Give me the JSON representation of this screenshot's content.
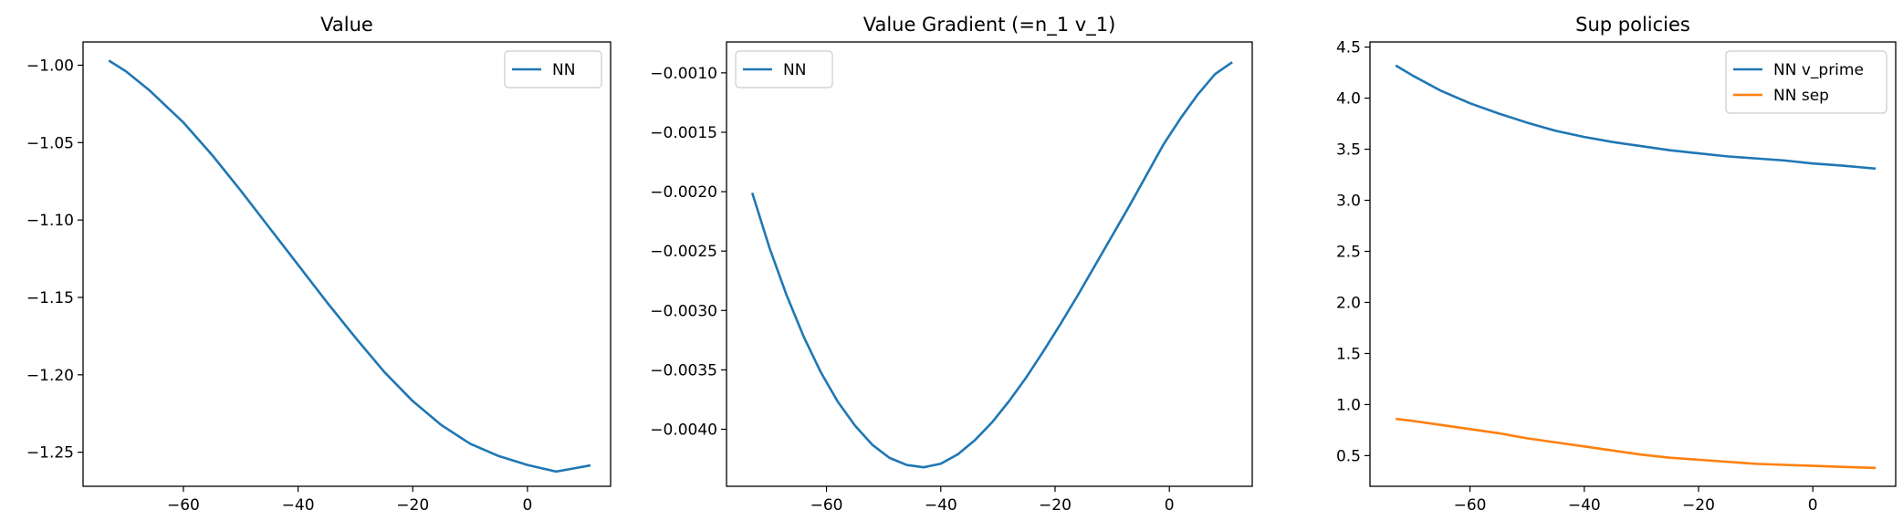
{
  "chart_data": [
    {
      "type": "line",
      "title": "Value",
      "xlabel": "",
      "ylabel": "",
      "xlim": [
        -77.5,
        14.5
      ],
      "ylim": [
        -1.272,
        -0.985
      ],
      "xticks": [
        -60,
        -40,
        -20,
        0
      ],
      "xtick_labels": [
        "−60",
        "−40",
        "−20",
        "0"
      ],
      "yticks": [
        -1.25,
        -1.2,
        -1.15,
        -1.1,
        -1.05,
        -1.0
      ],
      "ytick_labels": [
        "−1.25",
        "−1.20",
        "−1.15",
        "−1.10",
        "−1.05",
        "−1.00"
      ],
      "legend": "upper right",
      "grid": false,
      "series": [
        {
          "name": "NN",
          "color": "#1f77b4",
          "x": [
            -73,
            -70,
            -66,
            -60,
            -55,
            -50,
            -45,
            -40,
            -35,
            -30,
            -25,
            -20,
            -15,
            -10,
            -5,
            0,
            5,
            11
          ],
          "y": [
            -0.997,
            -1.004,
            -1.016,
            -1.037,
            -1.058,
            -1.081,
            -1.105,
            -1.129,
            -1.153,
            -1.176,
            -1.198,
            -1.217,
            -1.2325,
            -1.2445,
            -1.2525,
            -1.2582,
            -1.2625,
            -1.2585
          ]
        }
      ]
    },
    {
      "type": "line",
      "title": "Value Gradient (=n_1 v_1)",
      "xlabel": "",
      "ylabel": "",
      "xlim": [
        -77.5,
        14.5
      ],
      "ylim": [
        -0.00448,
        -0.00074
      ],
      "xticks": [
        -60,
        -40,
        -20,
        0
      ],
      "xtick_labels": [
        "−60",
        "−40",
        "−20",
        "0"
      ],
      "yticks": [
        -0.004,
        -0.0035,
        -0.003,
        -0.0025,
        -0.002,
        -0.0015,
        -0.001
      ],
      "ytick_labels": [
        "−0.0040",
        "−0.0035",
        "−0.0030",
        "−0.0025",
        "−0.0020",
        "−0.0015",
        "−0.0010"
      ],
      "legend": "upper left",
      "grid": false,
      "series": [
        {
          "name": "NN",
          "color": "#1f77b4",
          "x": [
            -73,
            -70,
            -67,
            -64,
            -61,
            -58,
            -55,
            -52,
            -49,
            -46,
            -43,
            -40,
            -37,
            -34,
            -31,
            -28,
            -25,
            -22,
            -19,
            -16,
            -13,
            -10,
            -7,
            -4,
            -1,
            2,
            5,
            8,
            11
          ],
          "y": [
            -0.00201,
            -0.00247,
            -0.00287,
            -0.00322,
            -0.00352,
            -0.00377,
            -0.00397,
            -0.00413,
            -0.00424,
            -0.0043,
            -0.00432,
            -0.00429,
            -0.00421,
            -0.00409,
            -0.00394,
            -0.00376,
            -0.00356,
            -0.00334,
            -0.00311,
            -0.00287,
            -0.00262,
            -0.00237,
            -0.00212,
            -0.00186,
            -0.0016,
            -0.00138,
            -0.00118,
            -0.00101,
            -0.00091
          ]
        }
      ]
    },
    {
      "type": "line",
      "title": "Sup policies",
      "xlabel": "",
      "ylabel": "",
      "xlim": [
        -77.5,
        14.5
      ],
      "ylim": [
        0.2,
        4.55
      ],
      "xticks": [
        -60,
        -40,
        -20,
        0
      ],
      "xtick_labels": [
        "−60",
        "−40",
        "−20",
        "0"
      ],
      "yticks": [
        0.5,
        1.0,
        1.5,
        2.0,
        2.5,
        3.0,
        3.5,
        4.0,
        4.5
      ],
      "ytick_labels": [
        "0.5",
        "1.0",
        "1.5",
        "2.0",
        "2.5",
        "3.0",
        "3.5",
        "4.0",
        "4.5"
      ],
      "legend": "upper right",
      "grid": false,
      "series": [
        {
          "name": "NN v_prime",
          "color": "#1f77b4",
          "x": [
            -73,
            -70,
            -65,
            -60,
            -55,
            -50,
            -45,
            -40,
            -35,
            -30,
            -25,
            -20,
            -15,
            -10,
            -5,
            0,
            5,
            11
          ],
          "y": [
            4.32,
            4.22,
            4.07,
            3.95,
            3.85,
            3.76,
            3.68,
            3.62,
            3.57,
            3.53,
            3.49,
            3.46,
            3.43,
            3.41,
            3.39,
            3.36,
            3.34,
            3.31
          ]
        },
        {
          "name": "NN sep",
          "color": "#ff7f0e",
          "x": [
            -73,
            -70,
            -65,
            -60,
            -55,
            -50,
            -45,
            -40,
            -35,
            -30,
            -25,
            -20,
            -15,
            -10,
            -5,
            0,
            5,
            11
          ],
          "y": [
            0.86,
            0.84,
            0.8,
            0.76,
            0.72,
            0.67,
            0.63,
            0.59,
            0.55,
            0.51,
            0.48,
            0.46,
            0.44,
            0.42,
            0.41,
            0.4,
            0.39,
            0.38
          ]
        }
      ]
    }
  ]
}
